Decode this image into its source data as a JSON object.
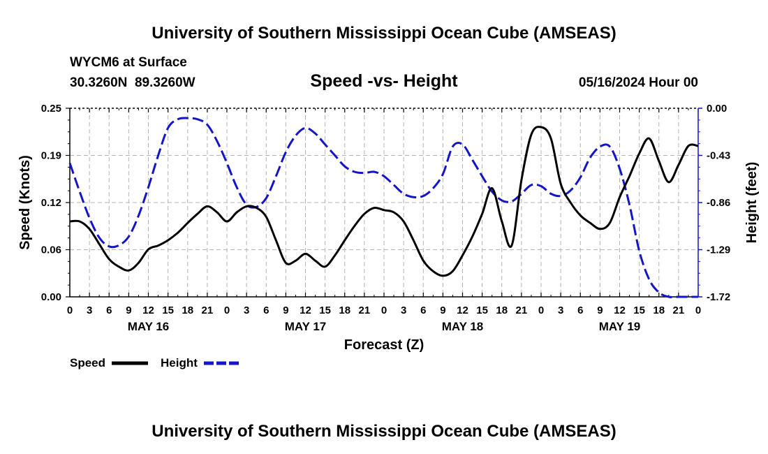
{
  "header": {
    "title": "University of Southern Mississippi Ocean Cube (AMSEAS)",
    "station": "WYCM6 at Surface",
    "coords": "30.3260N  89.3260W",
    "subtitle": "Speed -vs- Height",
    "datetime": "05/16/2024 Hour 00"
  },
  "footer": {
    "title": "University of Southern Mississippi Ocean Cube (AMSEAS)"
  },
  "colors": {
    "speed": "#000000",
    "height": "#1414c8",
    "grid": "#b4b4b4"
  },
  "chart_data": {
    "type": "line",
    "title": "Speed -vs- Height",
    "xlabel": "Forecast (Z)",
    "ylabel": "Speed (Knots)",
    "y2label": "Height (feet)",
    "x_unit": "forecast hours from 05/16/2024 00Z",
    "xlim": [
      0,
      96
    ],
    "ylim": [
      0,
      0.25
    ],
    "y2lim": [
      -1.72,
      0.0
    ],
    "yticks": [
      "0.25",
      "0.19",
      "0.12",
      "0.06",
      "0.00"
    ],
    "y2ticks": [
      "0.00",
      "-0.43",
      "-0.86",
      "-1.29",
      "-1.72"
    ],
    "xtick_labels": [
      "0",
      "3",
      "6",
      "9",
      "12",
      "15",
      "18",
      "21",
      "0",
      "3",
      "6",
      "9",
      "12",
      "15",
      "18",
      "21",
      "0",
      "3",
      "6",
      "9",
      "12",
      "15",
      "18",
      "21",
      "0",
      "3",
      "6",
      "9",
      "12",
      "15",
      "18",
      "21",
      "0"
    ],
    "day_labels": [
      "MAY 16",
      "MAY 17",
      "MAY 18",
      "MAY 19"
    ],
    "legend": [
      "Speed",
      "Height"
    ],
    "series": [
      {
        "name": "Speed",
        "axis": "left",
        "style": "solid",
        "x": [
          0,
          1.5,
          3,
          4.5,
          6,
          7.5,
          9,
          10.5,
          12,
          13.5,
          15,
          16.5,
          18,
          19.5,
          21,
          22.5,
          24,
          25.5,
          27,
          28.5,
          30,
          31.5,
          33,
          34.5,
          36,
          37.5,
          39,
          40.5,
          42,
          43.5,
          45,
          46.5,
          48,
          49.5,
          51,
          52.5,
          54,
          55.5,
          57,
          58.5,
          60,
          61.5,
          63,
          64.5,
          66,
          67.5,
          69,
          70.5,
          72,
          73.5,
          75,
          76.5,
          78,
          79.5,
          81,
          82.5,
          84,
          85.5,
          87,
          88.5,
          90,
          91.5,
          93,
          94.5,
          96
        ],
        "values": [
          0.1,
          0.1,
          0.09,
          0.07,
          0.05,
          0.04,
          0.035,
          0.045,
          0.063,
          0.068,
          0.075,
          0.085,
          0.098,
          0.11,
          0.12,
          0.112,
          0.1,
          0.112,
          0.12,
          0.118,
          0.106,
          0.075,
          0.045,
          0.048,
          0.057,
          0.048,
          0.04,
          0.055,
          0.075,
          0.094,
          0.11,
          0.118,
          0.115,
          0.112,
          0.1,
          0.075,
          0.048,
          0.034,
          0.028,
          0.034,
          0.055,
          0.08,
          0.11,
          0.144,
          0.1,
          0.068,
          0.155,
          0.215,
          0.225,
          0.21,
          0.15,
          0.125,
          0.108,
          0.098,
          0.09,
          0.098,
          0.132,
          0.16,
          0.19,
          0.21,
          0.18,
          0.152,
          0.175,
          0.2,
          0.2
        ]
      },
      {
        "name": "Height",
        "axis": "right",
        "style": "dashed",
        "x": [
          0,
          1.5,
          3,
          4.5,
          6,
          7.5,
          9,
          10.5,
          12,
          13.5,
          15,
          16.5,
          18,
          19.5,
          21,
          22.5,
          24,
          25.5,
          27,
          28.5,
          30,
          31.5,
          33,
          34.5,
          36,
          37.5,
          39,
          40.5,
          42,
          43.5,
          45,
          46.5,
          48,
          49.5,
          51,
          52.5,
          54,
          55.5,
          57,
          58.5,
          60,
          61.5,
          63,
          64.5,
          66,
          67.5,
          69,
          70.5,
          72,
          73.5,
          75,
          76.5,
          78,
          79.5,
          81,
          82.5,
          84,
          85.5,
          87,
          88.5,
          90,
          91.5,
          93,
          94.5,
          96
        ],
        "values": [
          -0.5,
          -0.76,
          -1.0,
          -1.18,
          -1.26,
          -1.25,
          -1.17,
          -0.98,
          -0.72,
          -0.43,
          -0.18,
          -0.1,
          -0.09,
          -0.1,
          -0.15,
          -0.3,
          -0.5,
          -0.72,
          -0.88,
          -0.9,
          -0.82,
          -0.62,
          -0.4,
          -0.25,
          -0.18,
          -0.23,
          -0.33,
          -0.43,
          -0.53,
          -0.58,
          -0.59,
          -0.58,
          -0.62,
          -0.7,
          -0.78,
          -0.81,
          -0.8,
          -0.73,
          -0.6,
          -0.35,
          -0.33,
          -0.47,
          -0.62,
          -0.76,
          -0.84,
          -0.85,
          -0.78,
          -0.7,
          -0.71,
          -0.78,
          -0.8,
          -0.75,
          -0.63,
          -0.45,
          -0.35,
          -0.35,
          -0.55,
          -0.88,
          -1.3,
          -1.56,
          -1.68,
          -1.72,
          -1.72,
          -1.72,
          -1.72
        ]
      }
    ]
  }
}
